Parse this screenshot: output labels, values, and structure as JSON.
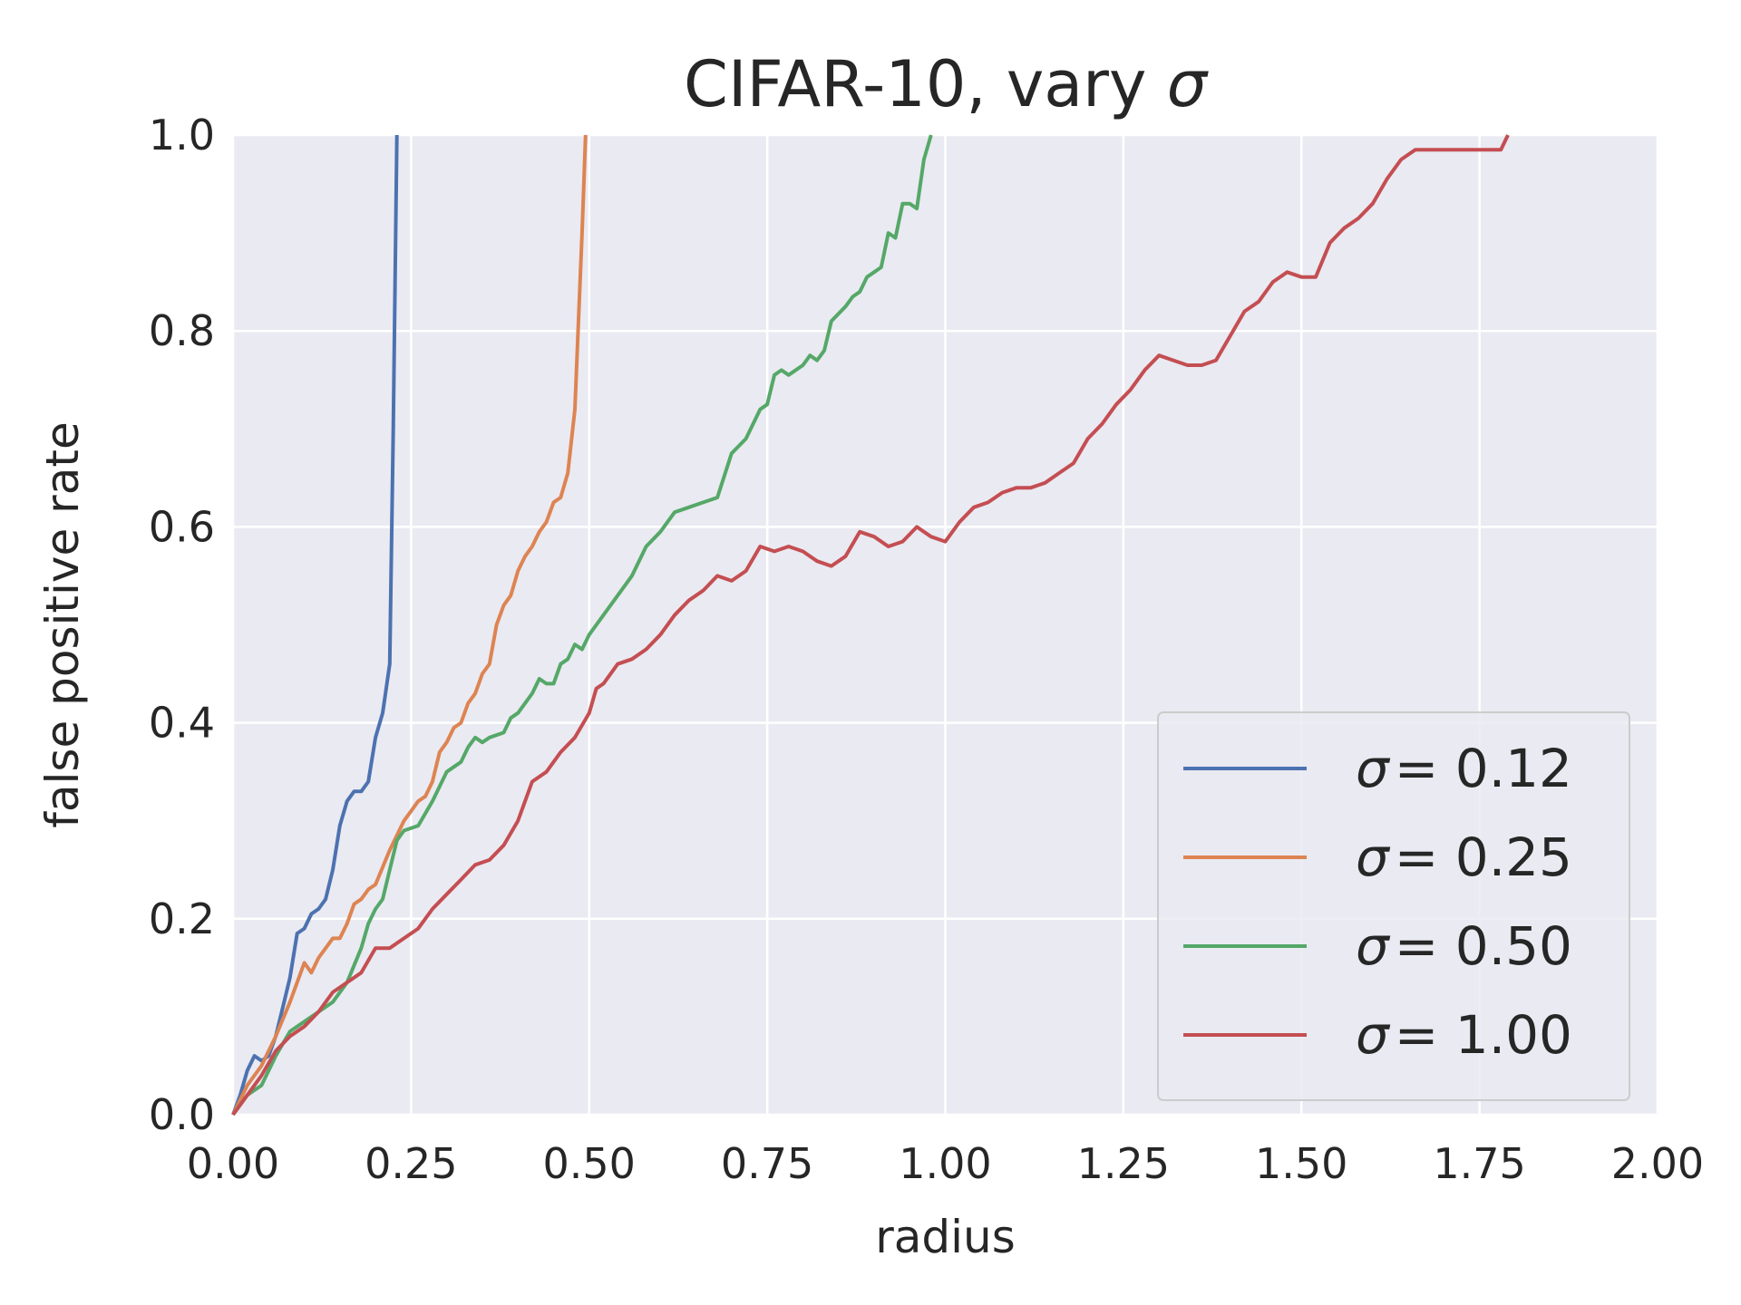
{
  "chart_data": {
    "type": "line",
    "title_prefix": "CIFAR-10, vary ",
    "title_symbol": "σ",
    "xlabel": "radius",
    "ylabel": "false positive rate",
    "xlim": [
      0,
      2
    ],
    "ylim": [
      0,
      1
    ],
    "xticks": [
      "0.00",
      "0.25",
      "0.50",
      "0.75",
      "1.00",
      "1.25",
      "1.50",
      "1.75",
      "2.00"
    ],
    "yticks": [
      "0.0",
      "0.2",
      "0.4",
      "0.6",
      "0.8",
      "1.0"
    ],
    "grid": true,
    "legend_position": "lower-right",
    "series": [
      {
        "name": "σ = 0.12",
        "legend_symbol": "σ",
        "legend_value": "= 0.12",
        "color": "#4c72b0",
        "points": [
          [
            0,
            0
          ],
          [
            0.01,
            0.02
          ],
          [
            0.02,
            0.045
          ],
          [
            0.03,
            0.06
          ],
          [
            0.04,
            0.055
          ],
          [
            0.05,
            0.06
          ],
          [
            0.06,
            0.08
          ],
          [
            0.07,
            0.11
          ],
          [
            0.08,
            0.14
          ],
          [
            0.09,
            0.185
          ],
          [
            0.1,
            0.19
          ],
          [
            0.11,
            0.205
          ],
          [
            0.12,
            0.21
          ],
          [
            0.13,
            0.22
          ],
          [
            0.14,
            0.25
          ],
          [
            0.15,
            0.295
          ],
          [
            0.16,
            0.32
          ],
          [
            0.17,
            0.33
          ],
          [
            0.18,
            0.33
          ],
          [
            0.19,
            0.34
          ],
          [
            0.2,
            0.385
          ],
          [
            0.21,
            0.41
          ],
          [
            0.22,
            0.46
          ],
          [
            0.225,
            0.7
          ],
          [
            0.23,
            1.0
          ]
        ]
      },
      {
        "name": "σ = 0.25",
        "legend_symbol": "σ",
        "legend_value": "= 0.25",
        "color": "#dd8452",
        "points": [
          [
            0,
            0
          ],
          [
            0.02,
            0.03
          ],
          [
            0.04,
            0.05
          ],
          [
            0.06,
            0.08
          ],
          [
            0.08,
            0.115
          ],
          [
            0.09,
            0.135
          ],
          [
            0.1,
            0.155
          ],
          [
            0.11,
            0.145
          ],
          [
            0.12,
            0.16
          ],
          [
            0.14,
            0.18
          ],
          [
            0.15,
            0.18
          ],
          [
            0.16,
            0.195
          ],
          [
            0.17,
            0.215
          ],
          [
            0.18,
            0.22
          ],
          [
            0.19,
            0.23
          ],
          [
            0.2,
            0.235
          ],
          [
            0.22,
            0.27
          ],
          [
            0.24,
            0.3
          ],
          [
            0.25,
            0.31
          ],
          [
            0.26,
            0.32
          ],
          [
            0.27,
            0.325
          ],
          [
            0.28,
            0.34
          ],
          [
            0.29,
            0.37
          ],
          [
            0.3,
            0.38
          ],
          [
            0.31,
            0.395
          ],
          [
            0.32,
            0.4
          ],
          [
            0.33,
            0.42
          ],
          [
            0.34,
            0.43
          ],
          [
            0.35,
            0.45
          ],
          [
            0.36,
            0.46
          ],
          [
            0.37,
            0.5
          ],
          [
            0.38,
            0.52
          ],
          [
            0.39,
            0.53
          ],
          [
            0.4,
            0.555
          ],
          [
            0.41,
            0.57
          ],
          [
            0.42,
            0.58
          ],
          [
            0.43,
            0.595
          ],
          [
            0.44,
            0.605
          ],
          [
            0.45,
            0.625
          ],
          [
            0.46,
            0.63
          ],
          [
            0.47,
            0.655
          ],
          [
            0.48,
            0.72
          ],
          [
            0.49,
            0.9
          ],
          [
            0.495,
            1.0
          ]
        ]
      },
      {
        "name": "σ = 0.50",
        "legend_symbol": "σ",
        "legend_value": "= 0.50",
        "color": "#55a868",
        "points": [
          [
            0,
            0
          ],
          [
            0.02,
            0.02
          ],
          [
            0.04,
            0.03
          ],
          [
            0.06,
            0.06
          ],
          [
            0.08,
            0.085
          ],
          [
            0.1,
            0.095
          ],
          [
            0.12,
            0.105
          ],
          [
            0.14,
            0.115
          ],
          [
            0.16,
            0.135
          ],
          [
            0.18,
            0.17
          ],
          [
            0.19,
            0.195
          ],
          [
            0.2,
            0.21
          ],
          [
            0.21,
            0.22
          ],
          [
            0.22,
            0.25
          ],
          [
            0.23,
            0.28
          ],
          [
            0.24,
            0.29
          ],
          [
            0.26,
            0.295
          ],
          [
            0.28,
            0.32
          ],
          [
            0.3,
            0.35
          ],
          [
            0.32,
            0.36
          ],
          [
            0.33,
            0.375
          ],
          [
            0.34,
            0.385
          ],
          [
            0.35,
            0.38
          ],
          [
            0.36,
            0.385
          ],
          [
            0.38,
            0.39
          ],
          [
            0.39,
            0.405
          ],
          [
            0.4,
            0.41
          ],
          [
            0.42,
            0.43
          ],
          [
            0.43,
            0.445
          ],
          [
            0.44,
            0.44
          ],
          [
            0.45,
            0.44
          ],
          [
            0.46,
            0.46
          ],
          [
            0.47,
            0.465
          ],
          [
            0.48,
            0.48
          ],
          [
            0.49,
            0.475
          ],
          [
            0.5,
            0.49
          ],
          [
            0.52,
            0.51
          ],
          [
            0.54,
            0.53
          ],
          [
            0.56,
            0.55
          ],
          [
            0.58,
            0.58
          ],
          [
            0.6,
            0.595
          ],
          [
            0.62,
            0.615
          ],
          [
            0.64,
            0.62
          ],
          [
            0.66,
            0.625
          ],
          [
            0.68,
            0.63
          ],
          [
            0.7,
            0.675
          ],
          [
            0.72,
            0.69
          ],
          [
            0.74,
            0.72
          ],
          [
            0.75,
            0.725
          ],
          [
            0.76,
            0.755
          ],
          [
            0.77,
            0.76
          ],
          [
            0.78,
            0.755
          ],
          [
            0.8,
            0.765
          ],
          [
            0.81,
            0.775
          ],
          [
            0.82,
            0.77
          ],
          [
            0.83,
            0.78
          ],
          [
            0.84,
            0.81
          ],
          [
            0.86,
            0.825
          ],
          [
            0.87,
            0.835
          ],
          [
            0.88,
            0.84
          ],
          [
            0.89,
            0.855
          ],
          [
            0.9,
            0.86
          ],
          [
            0.91,
            0.865
          ],
          [
            0.92,
            0.9
          ],
          [
            0.93,
            0.895
          ],
          [
            0.94,
            0.93
          ],
          [
            0.95,
            0.93
          ],
          [
            0.96,
            0.925
          ],
          [
            0.97,
            0.975
          ],
          [
            0.98,
            1.0
          ]
        ]
      },
      {
        "name": "σ = 1.00",
        "legend_symbol": "σ",
        "legend_value": "= 1.00",
        "color": "#c44e52",
        "points": [
          [
            0,
            0
          ],
          [
            0.02,
            0.02
          ],
          [
            0.04,
            0.04
          ],
          [
            0.06,
            0.065
          ],
          [
            0.08,
            0.08
          ],
          [
            0.1,
            0.09
          ],
          [
            0.12,
            0.105
          ],
          [
            0.14,
            0.125
          ],
          [
            0.16,
            0.135
          ],
          [
            0.18,
            0.145
          ],
          [
            0.2,
            0.17
          ],
          [
            0.22,
            0.17
          ],
          [
            0.24,
            0.18
          ],
          [
            0.26,
            0.19
          ],
          [
            0.28,
            0.21
          ],
          [
            0.3,
            0.225
          ],
          [
            0.32,
            0.24
          ],
          [
            0.34,
            0.255
          ],
          [
            0.36,
            0.26
          ],
          [
            0.38,
            0.275
          ],
          [
            0.4,
            0.3
          ],
          [
            0.42,
            0.34
          ],
          [
            0.44,
            0.35
          ],
          [
            0.46,
            0.37
          ],
          [
            0.48,
            0.385
          ],
          [
            0.5,
            0.41
          ],
          [
            0.51,
            0.435
          ],
          [
            0.52,
            0.44
          ],
          [
            0.54,
            0.46
          ],
          [
            0.56,
            0.465
          ],
          [
            0.58,
            0.475
          ],
          [
            0.6,
            0.49
          ],
          [
            0.62,
            0.51
          ],
          [
            0.64,
            0.525
          ],
          [
            0.66,
            0.535
          ],
          [
            0.68,
            0.55
          ],
          [
            0.7,
            0.545
          ],
          [
            0.72,
            0.555
          ],
          [
            0.74,
            0.58
          ],
          [
            0.76,
            0.575
          ],
          [
            0.78,
            0.58
          ],
          [
            0.8,
            0.575
          ],
          [
            0.82,
            0.565
          ],
          [
            0.84,
            0.56
          ],
          [
            0.86,
            0.57
          ],
          [
            0.88,
            0.595
          ],
          [
            0.9,
            0.59
          ],
          [
            0.92,
            0.58
          ],
          [
            0.94,
            0.585
          ],
          [
            0.96,
            0.6
          ],
          [
            0.98,
            0.59
          ],
          [
            1.0,
            0.585
          ],
          [
            1.02,
            0.605
          ],
          [
            1.04,
            0.62
          ],
          [
            1.06,
            0.625
          ],
          [
            1.08,
            0.635
          ],
          [
            1.1,
            0.64
          ],
          [
            1.12,
            0.64
          ],
          [
            1.14,
            0.645
          ],
          [
            1.16,
            0.655
          ],
          [
            1.18,
            0.665
          ],
          [
            1.2,
            0.69
          ],
          [
            1.22,
            0.705
          ],
          [
            1.24,
            0.725
          ],
          [
            1.26,
            0.74
          ],
          [
            1.28,
            0.76
          ],
          [
            1.3,
            0.775
          ],
          [
            1.32,
            0.77
          ],
          [
            1.34,
            0.765
          ],
          [
            1.36,
            0.765
          ],
          [
            1.38,
            0.77
          ],
          [
            1.4,
            0.795
          ],
          [
            1.42,
            0.82
          ],
          [
            1.44,
            0.83
          ],
          [
            1.46,
            0.85
          ],
          [
            1.48,
            0.86
          ],
          [
            1.5,
            0.855
          ],
          [
            1.52,
            0.855
          ],
          [
            1.54,
            0.89
          ],
          [
            1.56,
            0.905
          ],
          [
            1.58,
            0.915
          ],
          [
            1.6,
            0.93
          ],
          [
            1.62,
            0.955
          ],
          [
            1.64,
            0.975
          ],
          [
            1.66,
            0.985
          ],
          [
            1.7,
            0.985
          ],
          [
            1.74,
            0.985
          ],
          [
            1.78,
            0.985
          ],
          [
            1.79,
            1.0
          ]
        ]
      }
    ]
  }
}
